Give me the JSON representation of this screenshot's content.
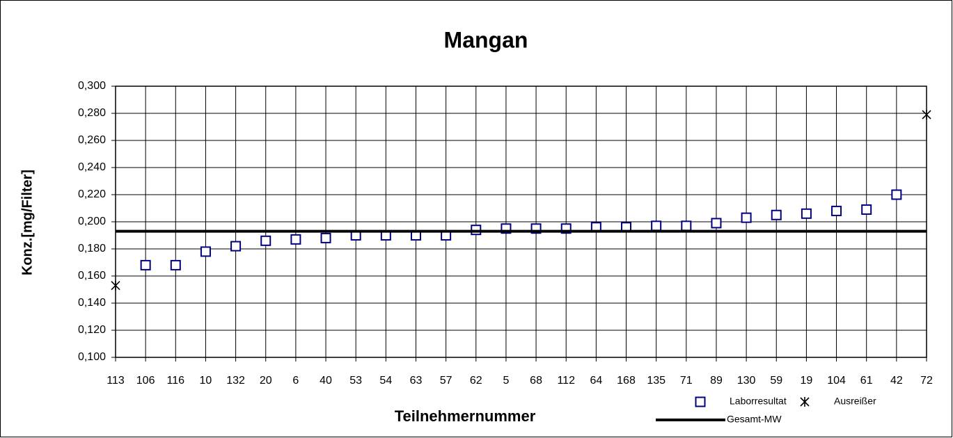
{
  "chart_data": {
    "type": "scatter",
    "title": "Mangan",
    "x_label": "Teilnehmernummer",
    "y_label": "Konz.[mg/Filter]",
    "categories": [
      "113",
      "106",
      "116",
      "10",
      "132",
      "20",
      "6",
      "40",
      "53",
      "54",
      "63",
      "57",
      "62",
      "5",
      "68",
      "112",
      "64",
      "168",
      "135",
      "71",
      "89",
      "130",
      "59",
      "19",
      "104",
      "61",
      "42",
      "72"
    ],
    "ylim": [
      0.1,
      0.3
    ],
    "yticks": [
      {
        "value": 0.1,
        "label": "0,100"
      },
      {
        "value": 0.12,
        "label": "0,120"
      },
      {
        "value": 0.14,
        "label": "0,140"
      },
      {
        "value": 0.16,
        "label": "0,160"
      },
      {
        "value": 0.18,
        "label": "0,180"
      },
      {
        "value": 0.2,
        "label": "0,200"
      },
      {
        "value": 0.22,
        "label": "0,220"
      },
      {
        "value": 0.24,
        "label": "0,240"
      },
      {
        "value": 0.26,
        "label": "0,260"
      },
      {
        "value": 0.28,
        "label": "0,280"
      },
      {
        "value": 0.3,
        "label": "0,300"
      }
    ],
    "grid": true,
    "legend": "bottom-right",
    "series": [
      {
        "name": "Laborresultat",
        "color": "#000080",
        "marker": "square",
        "values": [
          null,
          0.168,
          0.168,
          0.178,
          0.182,
          0.186,
          0.187,
          0.188,
          0.19,
          0.19,
          0.19,
          0.19,
          0.194,
          0.195,
          0.195,
          0.195,
          0.196,
          0.196,
          0.197,
          0.197,
          0.199,
          0.203,
          0.205,
          0.206,
          0.208,
          0.209,
          0.22,
          null
        ]
      },
      {
        "name": "Ausreißer",
        "color": "#000000",
        "marker": "x",
        "values": [
          0.153,
          null,
          null,
          null,
          null,
          null,
          null,
          null,
          null,
          null,
          null,
          null,
          null,
          null,
          null,
          null,
          null,
          null,
          null,
          null,
          null,
          null,
          null,
          null,
          null,
          null,
          null,
          0.279
        ]
      },
      {
        "name": "Gesamt-MW",
        "color": "#000000",
        "marker": "line",
        "values": [
          0.193,
          0.193,
          0.193,
          0.193,
          0.193,
          0.193,
          0.193,
          0.193,
          0.193,
          0.193,
          0.193,
          0.193,
          0.193,
          0.193,
          0.193,
          0.193,
          0.193,
          0.193,
          0.193,
          0.193,
          0.193,
          0.193,
          0.193,
          0.193,
          0.193,
          0.193,
          0.193,
          0.193
        ]
      }
    ]
  }
}
